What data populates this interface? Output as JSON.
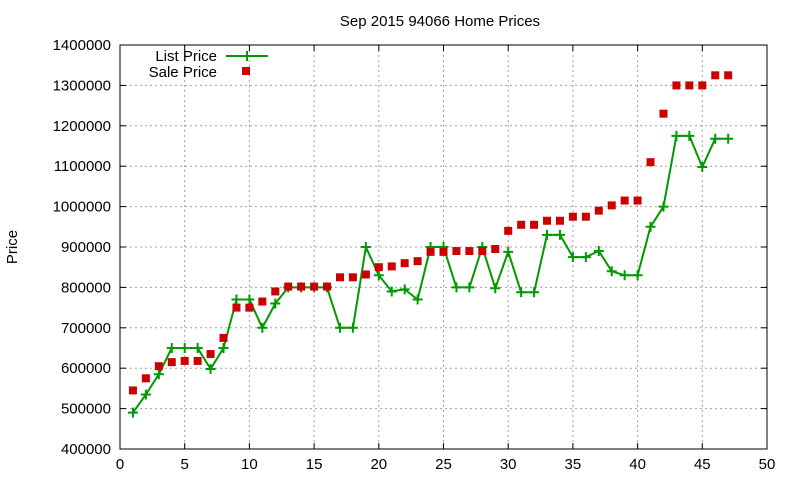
{
  "chart_data": {
    "type": "line",
    "title": "Sep 2015 94066 Home Prices",
    "xlabel": "",
    "ylabel": "Price",
    "xlim": [
      0,
      50
    ],
    "ylim": [
      400000,
      1400000
    ],
    "x_ticks": [
      0,
      5,
      10,
      15,
      20,
      25,
      30,
      35,
      40,
      45,
      50
    ],
    "y_ticks": [
      400000,
      500000,
      600000,
      700000,
      800000,
      900000,
      1000000,
      1100000,
      1200000,
      1300000,
      1400000
    ],
    "grid": true,
    "legend_position": "top-left",
    "series": [
      {
        "name": "List Price",
        "style": "line-with-plus-markers",
        "color": "#009900",
        "x": [
          1,
          2,
          3,
          4,
          5,
          6,
          7,
          8,
          9,
          10,
          11,
          12,
          13,
          14,
          15,
          16,
          17,
          18,
          19,
          20,
          21,
          22,
          23,
          24,
          25,
          26,
          27,
          28,
          29,
          30,
          31,
          32,
          33,
          34,
          35,
          36,
          37,
          38,
          39,
          40,
          41,
          42,
          43,
          44,
          45,
          46,
          47
        ],
        "values": [
          490000,
          535000,
          585000,
          650000,
          650000,
          650000,
          598000,
          650000,
          770000,
          770000,
          700000,
          760000,
          800000,
          800000,
          800000,
          800000,
          700000,
          700000,
          900000,
          830000,
          790000,
          795000,
          770000,
          900000,
          900000,
          800000,
          800000,
          900000,
          798000,
          888000,
          788000,
          788000,
          930000,
          930000,
          875000,
          875000,
          890000,
          840000,
          830000,
          830000,
          950000,
          1000000,
          1175000,
          1175000,
          1098000,
          1168000,
          1168000
        ]
      },
      {
        "name": "Sale Price",
        "style": "square-markers",
        "color": "#cc0000",
        "x": [
          1,
          2,
          3,
          4,
          5,
          6,
          7,
          8,
          9,
          10,
          11,
          12,
          13,
          14,
          15,
          16,
          17,
          18,
          19,
          20,
          21,
          22,
          23,
          24,
          25,
          26,
          27,
          28,
          29,
          30,
          31,
          32,
          33,
          34,
          35,
          36,
          37,
          38,
          39,
          40,
          41,
          42,
          43,
          44,
          45,
          46,
          47
        ],
        "values": [
          545000,
          575000,
          605000,
          615000,
          618000,
          618000,
          635000,
          675000,
          750000,
          750000,
          765000,
          790000,
          802000,
          802000,
          802000,
          802000,
          825000,
          825000,
          832000,
          850000,
          852000,
          860000,
          865000,
          888000,
          888000,
          890000,
          890000,
          890000,
          895000,
          940000,
          955000,
          955000,
          965000,
          965000,
          975000,
          975000,
          990000,
          1003000,
          1015000,
          1015000,
          1110000,
          1230000,
          1300000,
          1300000,
          1300000,
          1325000,
          1325000
        ]
      }
    ]
  }
}
